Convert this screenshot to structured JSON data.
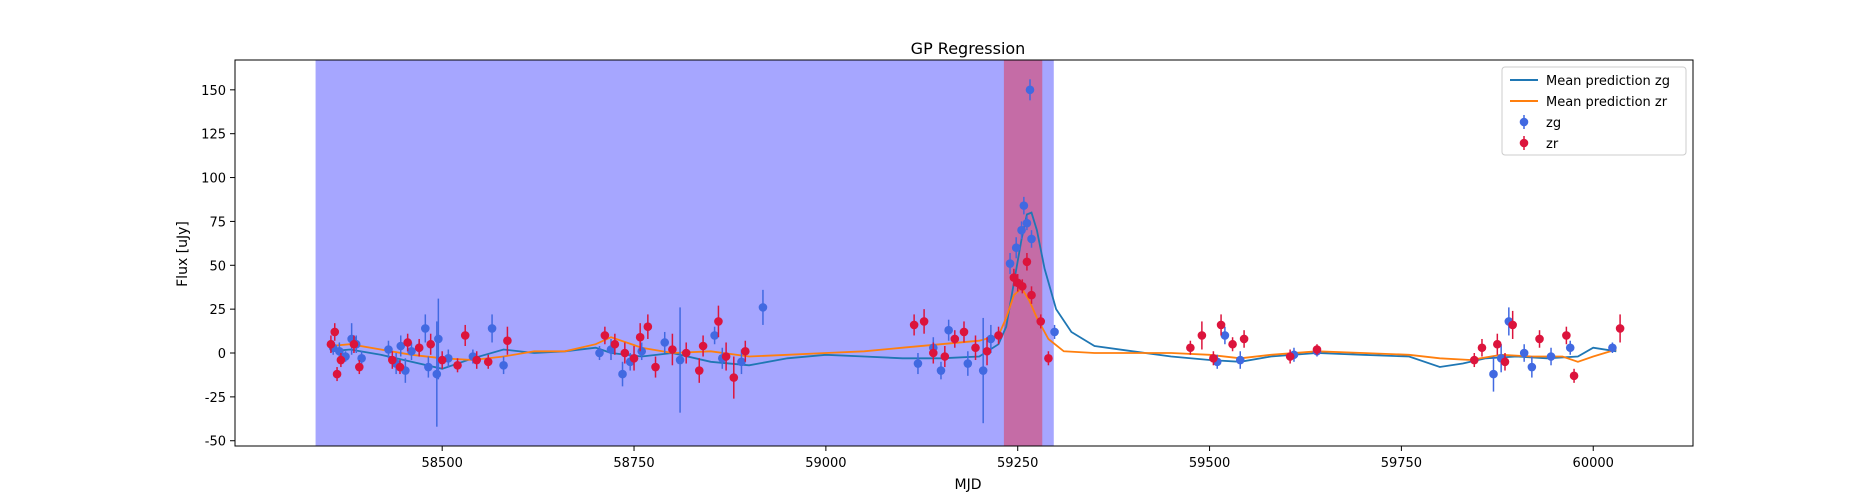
{
  "chart_data": {
    "type": "scatter",
    "title": "GP Regression",
    "xlabel": "MJD",
    "ylabel": "Flux [uJy]",
    "xlim": [
      58230,
      60130
    ],
    "ylim": [
      -53,
      167
    ],
    "xticks": [
      58500,
      58750,
      59000,
      59250,
      59500,
      59750,
      60000
    ],
    "yticks": [
      -50,
      -25,
      0,
      25,
      50,
      75,
      100,
      125,
      150
    ],
    "legend_position": "top-right",
    "colors": {
      "zg_line": "#1f77b4",
      "zr_line": "#ff7f0e",
      "zg_points": "#4169e1",
      "zr_points": "#dc143c",
      "blue_band": "#0000ff",
      "red_band": "#ff0000"
    },
    "shaded_regions": [
      {
        "x0": 58335,
        "x1": 59297,
        "color": "#0000ff"
      },
      {
        "x0": 59232,
        "x1": 59282,
        "color": "#ff0000"
      }
    ],
    "series": [
      {
        "name": "Mean prediction zg",
        "kind": "line",
        "x": [
          58355,
          58380,
          58420,
          58460,
          58500,
          58540,
          58580,
          58620,
          58660,
          58700,
          58720,
          58760,
          58800,
          58850,
          58900,
          58950,
          59000,
          59050,
          59100,
          59150,
          59200,
          59225,
          59235,
          59245,
          59255,
          59262,
          59268,
          59275,
          59285,
          59300,
          59320,
          59350,
          59400,
          59450,
          59500,
          59540,
          59580,
          59640,
          59700,
          59760,
          59800,
          59830,
          59860,
          59900,
          59940,
          59980,
          60000,
          60030
        ],
        "y": [
          1,
          2,
          -1,
          -5,
          -9,
          -3,
          2,
          0,
          1,
          3,
          0,
          -2,
          0,
          -5,
          -7,
          -3,
          -1,
          -2,
          -3,
          -3,
          -2,
          5,
          15,
          40,
          65,
          79,
          80,
          70,
          48,
          25,
          12,
          4,
          1,
          -2,
          -4,
          -5,
          -2,
          0,
          -1,
          -2,
          -8,
          -6,
          -3,
          -2,
          -3,
          -2,
          3,
          1
        ]
      },
      {
        "name": "Mean prediction zr",
        "kind": "line",
        "x": [
          58355,
          58380,
          58420,
          58460,
          58500,
          58540,
          58580,
          58620,
          58660,
          58700,
          58720,
          58760,
          58800,
          58850,
          58900,
          58950,
          59000,
          59050,
          59100,
          59150,
          59200,
          59225,
          59235,
          59245,
          59255,
          59265,
          59275,
          59290,
          59310,
          59350,
          59400,
          59450,
          59500,
          59540,
          59580,
          59640,
          59700,
          59760,
          59800,
          59840,
          59880,
          59920,
          59960,
          59980,
          60000,
          60030
        ],
        "y": [
          4,
          5,
          2,
          -1,
          -3,
          -4,
          -2,
          1,
          1,
          5,
          9,
          3,
          0,
          1,
          -2,
          -1,
          0,
          1,
          3,
          5,
          7,
          10,
          20,
          33,
          37,
          30,
          20,
          8,
          1,
          0,
          0,
          0,
          -1,
          -3,
          -1,
          1,
          0,
          -1,
          -3,
          -4,
          -1,
          -2,
          -2,
          -5,
          -2,
          2
        ]
      },
      {
        "name": "zg",
        "kind": "errorbar",
        "points": [
          [
            58358,
            3,
            4
          ],
          [
            58366,
            1,
            5
          ],
          [
            58374,
            -2,
            3
          ],
          [
            58382,
            8,
            9
          ],
          [
            58388,
            5,
            5
          ],
          [
            58395,
            -3,
            4
          ],
          [
            58430,
            2,
            5
          ],
          [
            58440,
            -6,
            6
          ],
          [
            58446,
            4,
            6
          ],
          [
            58452,
            -10,
            7
          ],
          [
            58460,
            1,
            5
          ],
          [
            58470,
            3,
            4
          ],
          [
            58478,
            14,
            8
          ],
          [
            58482,
            -8,
            6
          ],
          [
            58493,
            -12,
            30
          ],
          [
            58495,
            8,
            23
          ],
          [
            58508,
            -3,
            5
          ],
          [
            58540,
            -2,
            4
          ],
          [
            58565,
            14,
            8
          ],
          [
            58580,
            -7,
            5
          ],
          [
            58705,
            0,
            4
          ],
          [
            58720,
            2,
            6
          ],
          [
            58735,
            -12,
            7
          ],
          [
            58745,
            -5,
            5
          ],
          [
            58760,
            1,
            5
          ],
          [
            58790,
            6,
            6
          ],
          [
            58810,
            -4,
            30
          ],
          [
            58855,
            10,
            5
          ],
          [
            58865,
            -3,
            6
          ],
          [
            58890,
            -5,
            7
          ],
          [
            58918,
            26,
            10
          ],
          [
            59120,
            -6,
            6
          ],
          [
            59140,
            3,
            6
          ],
          [
            59150,
            -10,
            5
          ],
          [
            59160,
            13,
            6
          ],
          [
            59185,
            -6,
            7
          ],
          [
            59205,
            -10,
            30
          ],
          [
            59215,
            8,
            8
          ],
          [
            59240,
            51,
            6
          ],
          [
            59248,
            60,
            6
          ],
          [
            59255,
            70,
            5
          ],
          [
            59258,
            84,
            5
          ],
          [
            59262,
            74,
            4
          ],
          [
            59268,
            65,
            5
          ],
          [
            59266,
            150,
            6
          ],
          [
            59298,
            12,
            4
          ],
          [
            59510,
            -5,
            4
          ],
          [
            59520,
            10,
            5
          ],
          [
            59540,
            -4,
            5
          ],
          [
            59610,
            -1,
            4
          ],
          [
            59640,
            1,
            3
          ],
          [
            59870,
            -12,
            10
          ],
          [
            59880,
            -3,
            8
          ],
          [
            59890,
            18,
            8
          ],
          [
            59910,
            0,
            5
          ],
          [
            59920,
            -8,
            6
          ],
          [
            59945,
            -2,
            5
          ],
          [
            59970,
            3,
            4
          ],
          [
            60025,
            3,
            3
          ]
        ]
      },
      {
        "name": "zr",
        "kind": "errorbar",
        "points": [
          [
            58355,
            5,
            5
          ],
          [
            58360,
            12,
            5
          ],
          [
            58363,
            -12,
            4
          ],
          [
            58368,
            -4,
            4
          ],
          [
            58385,
            5,
            5
          ],
          [
            58392,
            -8,
            4
          ],
          [
            58435,
            -4,
            5
          ],
          [
            58445,
            -8,
            4
          ],
          [
            58455,
            6,
            5
          ],
          [
            58470,
            3,
            5
          ],
          [
            58485,
            5,
            6
          ],
          [
            58500,
            -4,
            5
          ],
          [
            58520,
            -7,
            4
          ],
          [
            58530,
            10,
            6
          ],
          [
            58545,
            -4,
            5
          ],
          [
            58560,
            -5,
            4
          ],
          [
            58585,
            7,
            8
          ],
          [
            58712,
            10,
            5
          ],
          [
            58725,
            5,
            6
          ],
          [
            58738,
            0,
            6
          ],
          [
            58750,
            -3,
            7
          ],
          [
            58758,
            9,
            8
          ],
          [
            58768,
            15,
            7
          ],
          [
            58778,
            -8,
            6
          ],
          [
            58800,
            2,
            9
          ],
          [
            58818,
            0,
            6
          ],
          [
            58835,
            -10,
            7
          ],
          [
            58840,
            4,
            6
          ],
          [
            58860,
            18,
            9
          ],
          [
            58870,
            -2,
            8
          ],
          [
            58880,
            -14,
            12
          ],
          [
            58895,
            1,
            6
          ],
          [
            59115,
            16,
            6
          ],
          [
            59128,
            18,
            7
          ],
          [
            59140,
            0,
            6
          ],
          [
            59155,
            -2,
            6
          ],
          [
            59168,
            8,
            5
          ],
          [
            59180,
            12,
            6
          ],
          [
            59195,
            3,
            7
          ],
          [
            59210,
            1,
            8
          ],
          [
            59225,
            10,
            5
          ],
          [
            59245,
            43,
            5
          ],
          [
            59250,
            40,
            5
          ],
          [
            59256,
            38,
            4
          ],
          [
            59262,
            52,
            5
          ],
          [
            59268,
            33,
            5
          ],
          [
            59280,
            18,
            4
          ],
          [
            59290,
            -3,
            4
          ],
          [
            59475,
            3,
            4
          ],
          [
            59490,
            10,
            8
          ],
          [
            59505,
            -3,
            4
          ],
          [
            59515,
            16,
            6
          ],
          [
            59530,
            5,
            4
          ],
          [
            59545,
            8,
            5
          ],
          [
            59605,
            -2,
            4
          ],
          [
            59640,
            2,
            3
          ],
          [
            59845,
            -4,
            4
          ],
          [
            59855,
            3,
            5
          ],
          [
            59875,
            5,
            6
          ],
          [
            59885,
            -5,
            5
          ],
          [
            59895,
            16,
            8
          ],
          [
            59930,
            8,
            5
          ],
          [
            59965,
            10,
            5
          ],
          [
            59975,
            -13,
            4
          ],
          [
            60035,
            14,
            8
          ]
        ]
      }
    ]
  }
}
